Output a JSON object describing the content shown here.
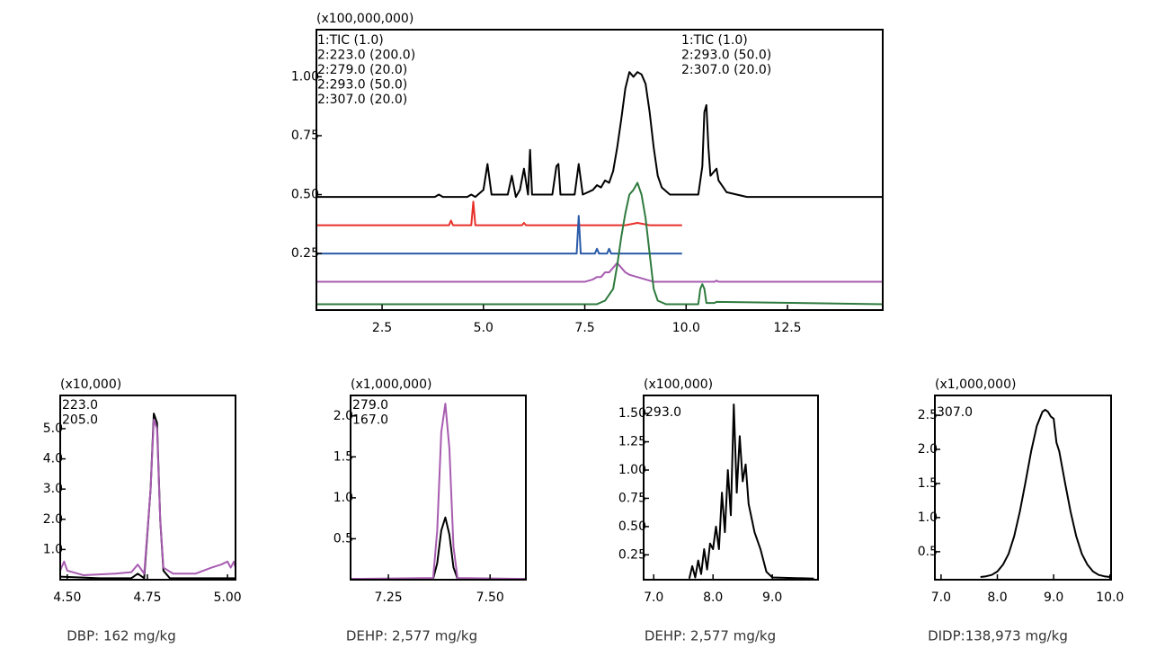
{
  "chart_data": [
    {
      "type": "line",
      "scale_label": "(x100,000,000)",
      "xlim": [
        0.88,
        14.85
      ],
      "ylim": [
        0.01,
        1.2
      ],
      "xticks": [
        2.5,
        {
          "value": 5,
          "label": "5.0"
        },
        7.5,
        {
          "value": 10,
          "label": "10.0"
        },
        12.5
      ],
      "yticks": [
        0.25,
        {
          "value": 0.5,
          "label": "0.50"
        },
        0.75,
        {
          "value": 1,
          "label": "1.00"
        }
      ],
      "series": [
        {
          "name": "1:TIC (1.0)",
          "color": "#000000",
          "x": [
            0.88,
            3.8,
            3.9,
            4.0,
            4.6,
            4.7,
            4.8,
            5.0,
            5.1,
            5.2,
            5.6,
            5.7,
            5.8,
            5.9,
            6.0,
            6.1,
            6.15,
            6.2,
            6.7,
            6.8,
            6.85,
            6.9,
            7.25,
            7.35,
            7.45,
            7.7,
            7.8,
            7.9,
            8.0,
            8.1,
            8.2,
            8.3,
            8.4,
            8.5,
            8.6,
            8.7,
            8.8,
            8.9,
            9.0,
            9.1,
            9.2,
            9.3,
            9.4,
            9.6,
            10.3,
            10.4,
            10.45,
            10.5,
            10.55,
            10.6,
            10.7,
            10.75,
            10.8,
            11.0,
            11.5,
            14.85
          ],
          "values": [
            0.49,
            0.49,
            0.5,
            0.49,
            0.49,
            0.5,
            0.49,
            0.52,
            0.63,
            0.5,
            0.5,
            0.58,
            0.49,
            0.52,
            0.61,
            0.5,
            0.69,
            0.5,
            0.5,
            0.62,
            0.63,
            0.5,
            0.5,
            0.63,
            0.5,
            0.52,
            0.54,
            0.53,
            0.56,
            0.55,
            0.6,
            0.7,
            0.82,
            0.95,
            1.02,
            1.0,
            1.02,
            1.01,
            0.97,
            0.85,
            0.7,
            0.58,
            0.53,
            0.5,
            0.5,
            0.62,
            0.85,
            0.88,
            0.7,
            0.58,
            0.6,
            0.61,
            0.56,
            0.51,
            0.49,
            0.49
          ]
        },
        {
          "name": "2:223.0 (200.0)",
          "color": "#e8302a",
          "x": [
            0.88,
            4.15,
            4.2,
            4.25,
            4.7,
            4.75,
            4.8,
            5.95,
            6.0,
            6.05,
            8.5,
            8.8,
            9.1,
            9.9
          ],
          "values": [
            0.37,
            0.37,
            0.39,
            0.37,
            0.37,
            0.47,
            0.37,
            0.37,
            0.38,
            0.37,
            0.37,
            0.38,
            0.37,
            0.37
          ]
        },
        {
          "name": "2:279.0 (20.0)",
          "color": "#2a5aa8",
          "x": [
            0.88,
            7.3,
            7.35,
            7.4,
            7.75,
            7.8,
            7.85,
            8.05,
            8.1,
            8.15,
            9.9
          ],
          "values": [
            0.25,
            0.25,
            0.41,
            0.25,
            0.25,
            0.27,
            0.25,
            0.25,
            0.27,
            0.25,
            0.25
          ]
        },
        {
          "name": "2:293.0 (50.0)",
          "color": "#a75cb0",
          "x": [
            0.88,
            7.5,
            7.7,
            7.8,
            7.9,
            8.0,
            8.1,
            8.2,
            8.3,
            8.4,
            8.5,
            8.6,
            8.8,
            9.0,
            9.2,
            9.5,
            10.7,
            10.75,
            10.8,
            14.85
          ],
          "values": [
            0.13,
            0.13,
            0.14,
            0.15,
            0.15,
            0.17,
            0.17,
            0.19,
            0.21,
            0.19,
            0.17,
            0.16,
            0.15,
            0.14,
            0.13,
            0.13,
            0.13,
            0.135,
            0.13,
            0.13
          ]
        },
        {
          "name": "2:307.0 (20.0)",
          "color": "#2e7a3e",
          "x": [
            0.88,
            7.8,
            8.0,
            8.2,
            8.3,
            8.4,
            8.5,
            8.6,
            8.7,
            8.8,
            8.9,
            9.0,
            9.1,
            9.2,
            9.3,
            9.5,
            10.3,
            10.35,
            10.4,
            10.45,
            10.5,
            10.7,
            10.75,
            14.85
          ],
          "values": [
            0.035,
            0.035,
            0.05,
            0.1,
            0.2,
            0.32,
            0.42,
            0.5,
            0.52,
            0.55,
            0.5,
            0.4,
            0.25,
            0.1,
            0.05,
            0.035,
            0.035,
            0.1,
            0.12,
            0.1,
            0.04,
            0.04,
            0.045,
            0.035
          ]
        }
      ]
    },
    {
      "type": "line",
      "scale_label": "(x10,000)",
      "caption": "DBP: 162 mg/kg",
      "xlim": [
        4.478,
        5.025
      ],
      "ylim": [
        0,
        6.1
      ],
      "xticks": [
        {
          "value": 4.5,
          "label": "4.50"
        },
        4.75,
        {
          "value": 5,
          "label": "5.00"
        }
      ],
      "yticks": [
        {
          "value": 5,
          "label": "5.0"
        },
        {
          "value": 4,
          "label": "4.0"
        },
        {
          "value": 3,
          "label": "3.0"
        },
        {
          "value": 2,
          "label": "2.0"
        },
        {
          "value": 1,
          "label": "1.0"
        }
      ],
      "series": [
        {
          "name": "223.0",
          "color": "#000000",
          "x": [
            4.478,
            4.6,
            4.7,
            4.72,
            4.74,
            4.76,
            4.77,
            4.78,
            4.79,
            4.8,
            4.82,
            5.025
          ],
          "values": [
            0.1,
            0.05,
            0.05,
            0.2,
            0.05,
            3.0,
            5.5,
            5.2,
            2.0,
            0.3,
            0.05,
            0.05
          ]
        },
        {
          "name": "205.0",
          "color": "#a75cb0",
          "x": [
            4.478,
            4.49,
            4.5,
            4.55,
            4.65,
            4.7,
            4.72,
            4.74,
            4.76,
            4.77,
            4.78,
            4.79,
            4.8,
            4.83,
            4.9,
            4.95,
            4.98,
            5.0,
            5.01,
            5.02,
            5.025
          ],
          "values": [
            0.3,
            0.6,
            0.3,
            0.15,
            0.2,
            0.25,
            0.5,
            0.2,
            3.0,
            5.3,
            5.0,
            2.0,
            0.4,
            0.2,
            0.2,
            0.4,
            0.5,
            0.6,
            0.4,
            0.6,
            0.4
          ]
        }
      ]
    },
    {
      "type": "line",
      "scale_label": "(x1,000,000)",
      "caption": "DEHP: 2,577 mg/kg",
      "xlim": [
        7.157,
        7.588
      ],
      "ylim": [
        0,
        2.25
      ],
      "xticks": [
        7.25,
        {
          "value": 7.5,
          "label": "7.50"
        }
      ],
      "yticks": [
        {
          "value": 2,
          "label": "2.0"
        },
        1.5,
        {
          "value": 1,
          "label": "1.0"
        },
        0.5
      ],
      "series": [
        {
          "name": "279.0",
          "color": "#000000",
          "x": [
            7.157,
            7.36,
            7.37,
            7.38,
            7.39,
            7.4,
            7.41,
            7.42,
            7.588
          ],
          "values": [
            0.01,
            0.01,
            0.2,
            0.6,
            0.76,
            0.55,
            0.15,
            0.01,
            0.01
          ]
        },
        {
          "name": "167.0",
          "color": "#a75cb0",
          "x": [
            7.157,
            7.36,
            7.37,
            7.38,
            7.39,
            7.4,
            7.41,
            7.42,
            7.588
          ],
          "values": [
            0.01,
            0.02,
            0.6,
            1.8,
            2.15,
            1.6,
            0.4,
            0.02,
            0.01
          ]
        }
      ]
    },
    {
      "type": "line",
      "scale_label": "(x100,000)",
      "caption": "DEHP: 2,577 mg/kg",
      "xlim": [
        6.83,
        9.77
      ],
      "ylim": [
        0.03,
        1.66
      ],
      "xticks": [
        {
          "value": 7,
          "label": "7.0"
        },
        {
          "value": 8,
          "label": "8.0"
        },
        {
          "value": 9,
          "label": "9.0"
        }
      ],
      "yticks": [
        {
          "value": 1.5,
          "label": "1.50"
        },
        1.25,
        {
          "value": 1,
          "label": "1.00"
        },
        0.75,
        {
          "value": 0.5,
          "label": "0.50"
        },
        0.25
      ],
      "series": [
        {
          "name": "293.0",
          "color": "#000000",
          "x": [
            7.6,
            7.65,
            7.7,
            7.75,
            7.8,
            7.85,
            7.9,
            7.95,
            8.0,
            8.05,
            8.1,
            8.15,
            8.2,
            8.25,
            8.3,
            8.35,
            8.4,
            8.45,
            8.5,
            8.55,
            8.6,
            8.7,
            8.8,
            8.9,
            9.0,
            9.7
          ],
          "values": [
            0.04,
            0.15,
            0.05,
            0.2,
            0.08,
            0.3,
            0.12,
            0.35,
            0.3,
            0.5,
            0.3,
            0.8,
            0.45,
            1.0,
            0.6,
            1.58,
            0.8,
            1.3,
            0.9,
            1.05,
            0.7,
            0.45,
            0.3,
            0.1,
            0.05,
            0.04
          ]
        }
      ]
    },
    {
      "type": "line",
      "scale_label": "(x1,000,000)",
      "caption": "DIDP:138,973 mg/kg",
      "xlim": [
        6.89,
        10.02
      ],
      "ylim": [
        0.09,
        2.79
      ],
      "xticks": [
        {
          "value": 7,
          "label": "7.0"
        },
        {
          "value": 8,
          "label": "8.0"
        },
        {
          "value": 9,
          "label": "9.0"
        },
        {
          "value": 10,
          "label": "10.0"
        }
      ],
      "yticks": [
        2.5,
        {
          "value": 2,
          "label": "2.0"
        },
        1.5,
        {
          "value": 1,
          "label": "1.0"
        },
        0.5
      ],
      "series": [
        {
          "name": "307.0",
          "color": "#000000",
          "x": [
            7.7,
            7.8,
            7.9,
            8.0,
            8.1,
            8.2,
            8.3,
            8.4,
            8.5,
            8.6,
            8.7,
            8.8,
            8.85,
            8.9,
            8.95,
            9.0,
            9.05,
            9.1,
            9.2,
            9.3,
            9.4,
            9.5,
            9.6,
            9.7,
            9.8,
            9.9,
            10.0
          ],
          "values": [
            0.13,
            0.14,
            0.16,
            0.21,
            0.31,
            0.47,
            0.73,
            1.09,
            1.52,
            1.97,
            2.34,
            2.55,
            2.58,
            2.55,
            2.48,
            2.45,
            2.1,
            1.97,
            1.52,
            1.09,
            0.73,
            0.47,
            0.31,
            0.21,
            0.16,
            0.14,
            0.13
          ]
        }
      ]
    }
  ]
}
